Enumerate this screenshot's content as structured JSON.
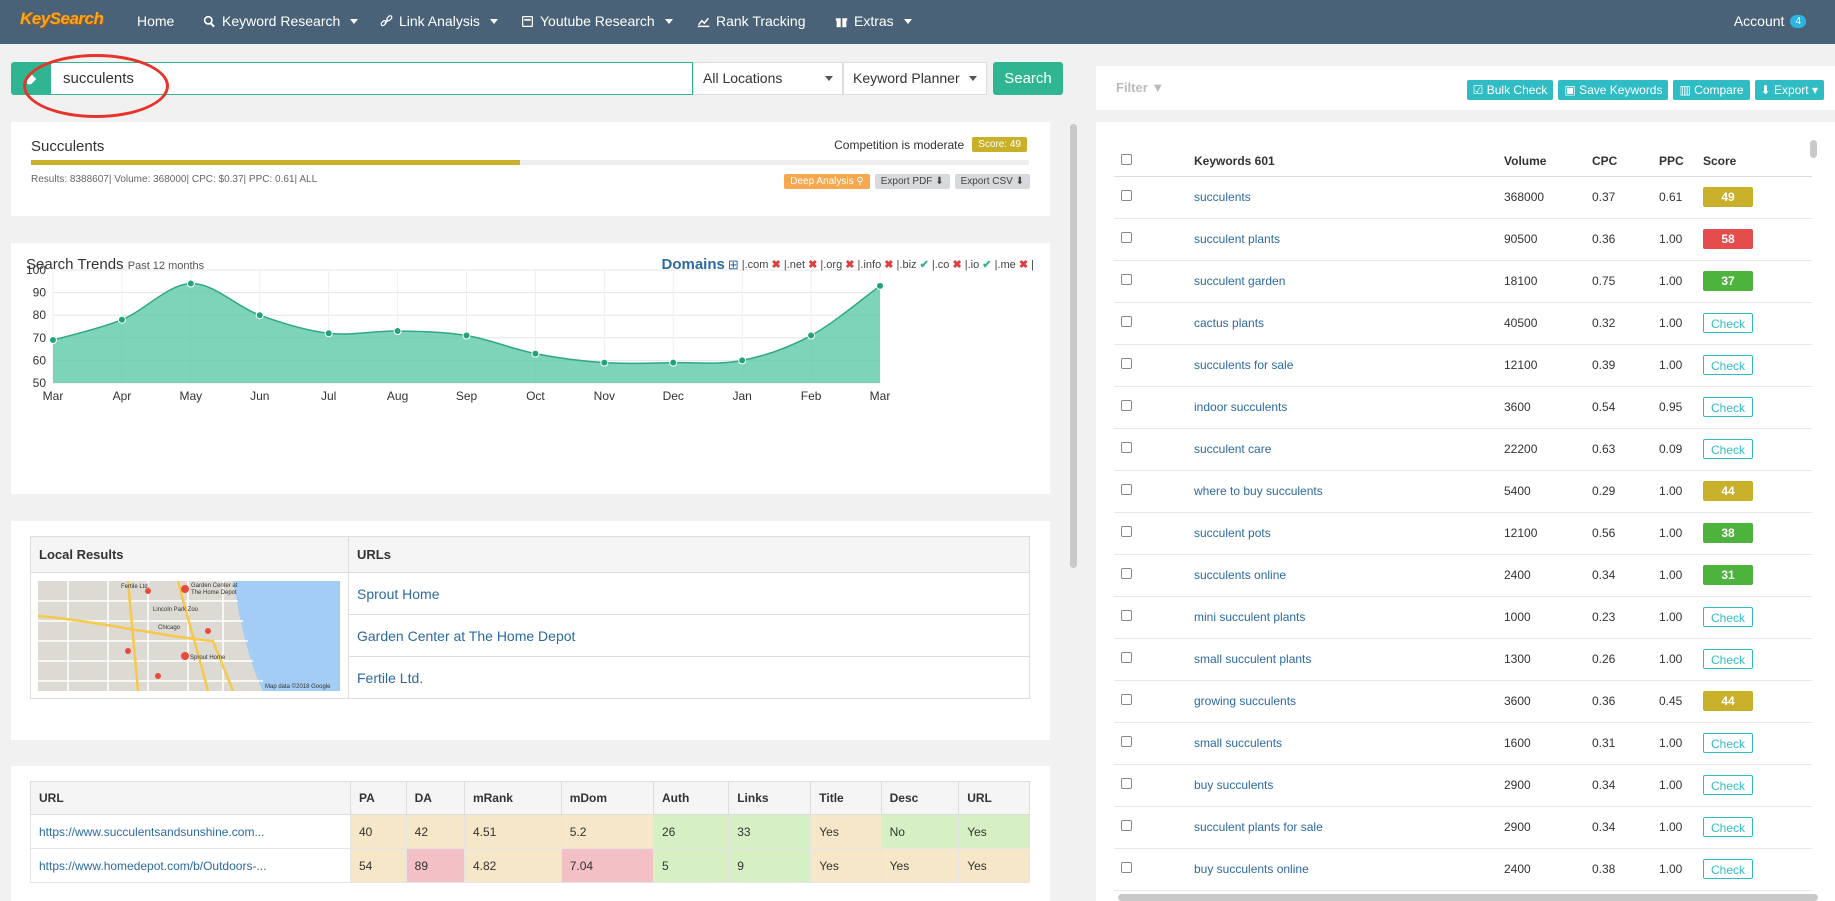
{
  "nav": {
    "logo": "KeySearch",
    "home": "Home",
    "keyword_research": "Keyword Research",
    "link_analysis": "Link Analysis",
    "youtube_research": "Youtube Research",
    "rank_tracking": "Rank Tracking",
    "extras": "Extras",
    "account": "Account",
    "account_badge": "4"
  },
  "search": {
    "value": "succulents",
    "location": "All Locations",
    "source": "Keyword Planner",
    "button": "Search"
  },
  "summary": {
    "keyword": "Succulents",
    "stats": "Results: 8388607| Volume: 368000| CPC: $0.37| PPC: 0.61| ALL",
    "competition": "Competition is moderate",
    "score": "Score: 49",
    "score_value": 49,
    "deep_analysis": "Deep Analysis",
    "export_pdf": "Export PDF",
    "export_csv": "Export CSV"
  },
  "trends": {
    "title": "Search Trends",
    "subtitle": "Past 12 months",
    "domains_label": "Domains",
    "domains": [
      {
        "tld": ".com",
        "available": false
      },
      {
        "tld": ".net",
        "available": false
      },
      {
        "tld": ".org",
        "available": false
      },
      {
        "tld": ".info",
        "available": false
      },
      {
        "tld": ".biz",
        "available": true
      },
      {
        "tld": ".co",
        "available": false
      },
      {
        "tld": ".io",
        "available": true
      },
      {
        "tld": ".me",
        "available": false
      }
    ]
  },
  "chart_data": {
    "type": "area",
    "categories": [
      "Mar",
      "Apr",
      "May",
      "Jun",
      "Jul",
      "Aug",
      "Sep",
      "Oct",
      "Nov",
      "Dec",
      "Jan",
      "Feb",
      "Mar"
    ],
    "values": [
      69,
      78,
      94,
      80,
      72,
      73,
      71,
      63,
      59,
      59,
      60,
      71,
      93
    ],
    "ylim": [
      50,
      100
    ],
    "yticks": [
      50,
      60,
      70,
      80,
      90,
      100
    ],
    "grid": true,
    "color": "#5ec9a8"
  },
  "local": {
    "col1": "Local Results",
    "col2": "URLs",
    "urls": [
      "Sprout Home",
      "Garden Center at The Home Depot",
      "Fertile Ltd."
    ],
    "map_credit": "Map data ©2018 Google"
  },
  "urltable": {
    "headers": [
      "URL",
      "PA",
      "DA",
      "mRank",
      "mDom",
      "Auth",
      "Links",
      "Title",
      "Desc",
      "URL"
    ],
    "rows": [
      [
        "https://www.succulentsandsunshine.com...",
        "40",
        "42",
        "4.51",
        "5.2",
        "26",
        "33",
        "Yes",
        "No",
        "Yes"
      ],
      [
        "https://www.homedepot.com/b/Outdoors-...",
        "54",
        "89",
        "4.82",
        "7.04",
        "5",
        "9",
        "Yes",
        "Yes",
        "Yes"
      ]
    ]
  },
  "right": {
    "filter": "Filter",
    "bulk_check": "Bulk Check",
    "save_keywords": "Save Keywords",
    "compare": "Compare",
    "export": "Export",
    "headers": [
      "Keywords 601",
      "Volume",
      "CPC",
      "PPC",
      "Score"
    ],
    "rows": [
      {
        "kw": "succulents",
        "vol": "368000",
        "cpc": "0.37",
        "ppc": "0.61",
        "score": "49",
        "cls": "y"
      },
      {
        "kw": "succulent plants",
        "vol": "90500",
        "cpc": "0.36",
        "ppc": "1.00",
        "score": "58",
        "cls": "r"
      },
      {
        "kw": "succulent garden",
        "vol": "18100",
        "cpc": "0.75",
        "ppc": "1.00",
        "score": "37",
        "cls": "g"
      },
      {
        "kw": "cactus plants",
        "vol": "40500",
        "cpc": "0.32",
        "ppc": "1.00",
        "score": "Check",
        "cls": "c"
      },
      {
        "kw": "succulents for sale",
        "vol": "12100",
        "cpc": "0.39",
        "ppc": "1.00",
        "score": "Check",
        "cls": "c"
      },
      {
        "kw": "indoor succulents",
        "vol": "3600",
        "cpc": "0.54",
        "ppc": "0.95",
        "score": "Check",
        "cls": "c"
      },
      {
        "kw": "succulent care",
        "vol": "22200",
        "cpc": "0.63",
        "ppc": "0.09",
        "score": "Check",
        "cls": "c"
      },
      {
        "kw": "where to buy succulents",
        "vol": "5400",
        "cpc": "0.29",
        "ppc": "1.00",
        "score": "44",
        "cls": "y"
      },
      {
        "kw": "succulent pots",
        "vol": "12100",
        "cpc": "0.56",
        "ppc": "1.00",
        "score": "38",
        "cls": "g"
      },
      {
        "kw": "succulents online",
        "vol": "2400",
        "cpc": "0.34",
        "ppc": "1.00",
        "score": "31",
        "cls": "g"
      },
      {
        "kw": "mini succulent plants",
        "vol": "1000",
        "cpc": "0.23",
        "ppc": "1.00",
        "score": "Check",
        "cls": "c"
      },
      {
        "kw": "small succulent plants",
        "vol": "1300",
        "cpc": "0.26",
        "ppc": "1.00",
        "score": "Check",
        "cls": "c"
      },
      {
        "kw": "growing succulents",
        "vol": "3600",
        "cpc": "0.36",
        "ppc": "0.45",
        "score": "44",
        "cls": "y"
      },
      {
        "kw": "small succulents",
        "vol": "1600",
        "cpc": "0.31",
        "ppc": "1.00",
        "score": "Check",
        "cls": "c"
      },
      {
        "kw": "buy succulents",
        "vol": "2900",
        "cpc": "0.34",
        "ppc": "1.00",
        "score": "Check",
        "cls": "c"
      },
      {
        "kw": "succulent plants for sale",
        "vol": "2900",
        "cpc": "0.34",
        "ppc": "1.00",
        "score": "Check",
        "cls": "c"
      },
      {
        "kw": "buy succulents online",
        "vol": "2400",
        "cpc": "0.38",
        "ppc": "1.00",
        "score": "Check",
        "cls": "c"
      }
    ]
  },
  "colors": {
    "nav": "#4a6277",
    "accent": "#2fb592",
    "teal_btn": "#2fbcc5",
    "score_yellow": "#c8b02a",
    "score_red": "#e54c4c",
    "score_green": "#4db33d"
  }
}
